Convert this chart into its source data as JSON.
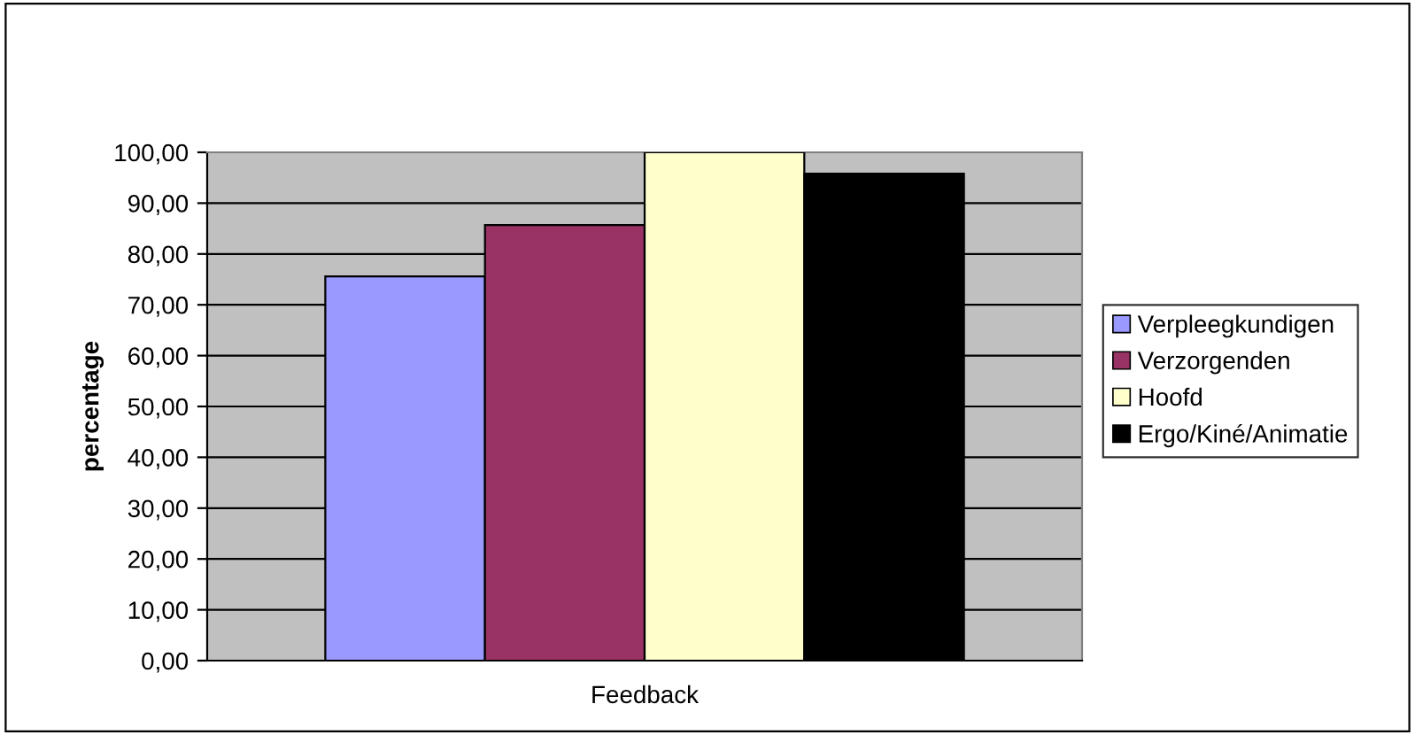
{
  "chart_data": {
    "type": "bar",
    "categories": [
      "Feedback"
    ],
    "ylabel": "percentage",
    "series": [
      {
        "name": "Verpleegkundigen",
        "color": "#9999ff",
        "values": [
          75.6
        ]
      },
      {
        "name": "Verzorgenden",
        "color": "#993366",
        "values": [
          85.7
        ]
      },
      {
        "name": "Hoofd",
        "color": "#ffffcc",
        "values": [
          100
        ]
      },
      {
        "name": "Ergo/Kiné/Animatie",
        "color": "#000000",
        "values": [
          95.8
        ]
      }
    ],
    "ylim": [
      0,
      100
    ],
    "yticks": [
      {
        "value": 0,
        "label": "0,00"
      },
      {
        "value": 10,
        "label": "10,00"
      },
      {
        "value": 20,
        "label": "20,00"
      },
      {
        "value": 30,
        "label": "30,00"
      },
      {
        "value": 40,
        "label": "40,00"
      },
      {
        "value": 50,
        "label": "50,00"
      },
      {
        "value": 60,
        "label": "60,00"
      },
      {
        "value": 70,
        "label": "70,00"
      },
      {
        "value": 80,
        "label": "80,00"
      },
      {
        "value": 90,
        "label": "90,00"
      },
      {
        "value": 100,
        "label": "100,00"
      }
    ],
    "grid": "y",
    "legend": "right"
  }
}
